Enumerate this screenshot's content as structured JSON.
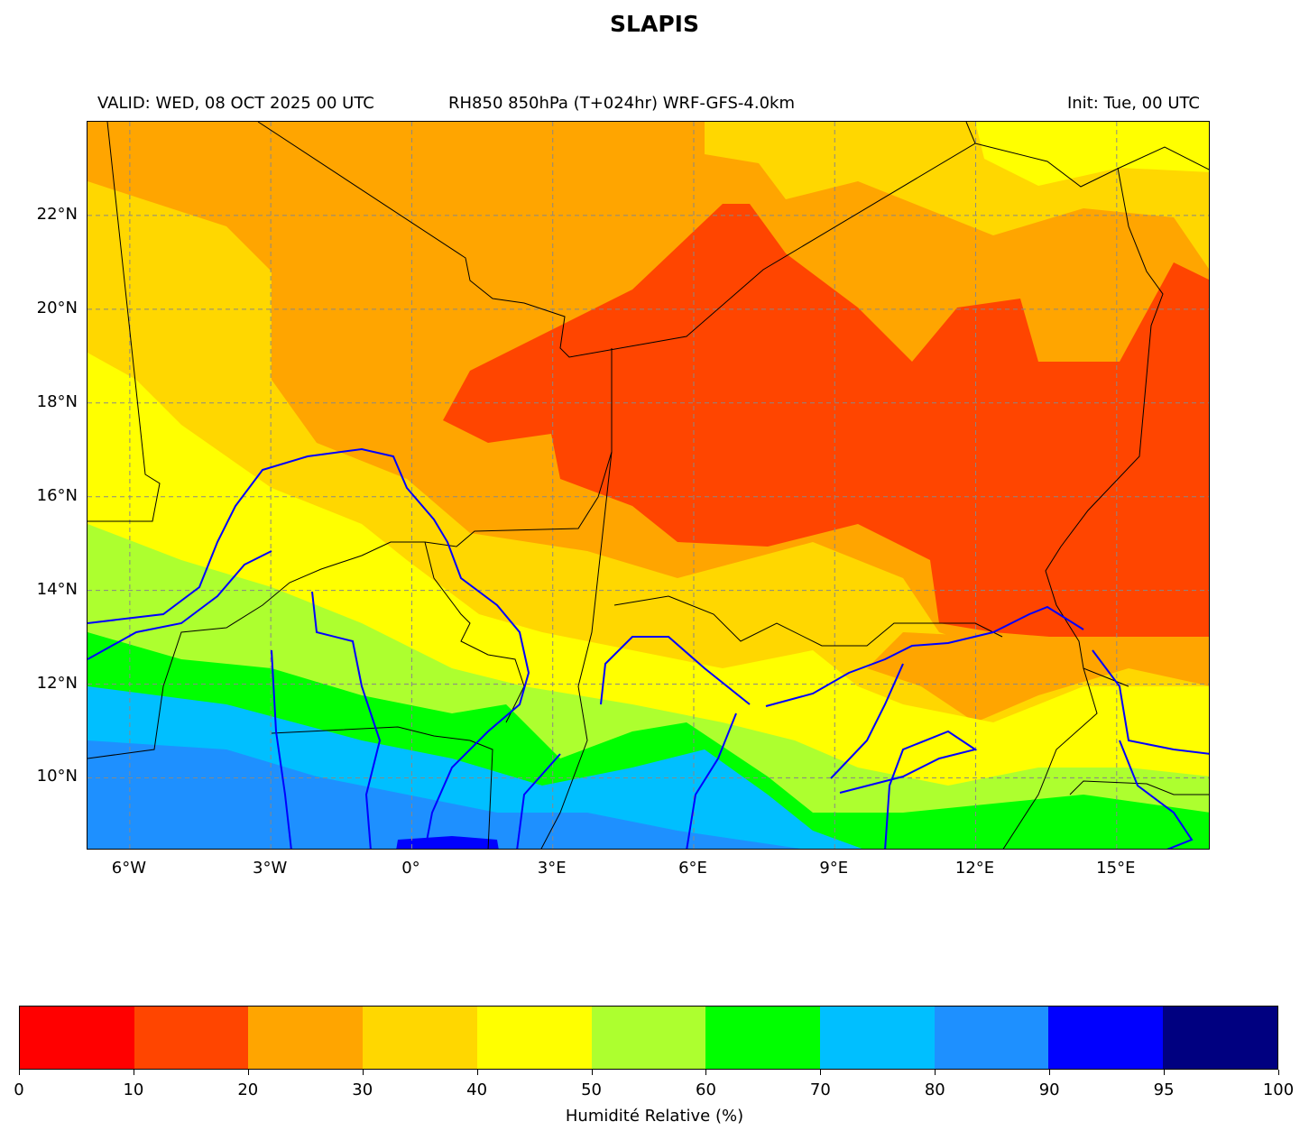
{
  "title": "SLAPIS",
  "subtitle_left": "VALID: WED, 08 OCT 2025 00 UTC",
  "subtitle_center": "RH850 850hPa (T+024hr) WRF-GFS-4.0km",
  "subtitle_right": "Init: Tue, 00 UTC",
  "map": {
    "extent": {
      "lon": [
        -6.9,
        17.0
      ],
      "lat": [
        8.45,
        24.0
      ]
    },
    "gridlines": true,
    "lon_ticks": [
      {
        "value": -6,
        "label": "6°W"
      },
      {
        "value": -3,
        "label": "3°W"
      },
      {
        "value": 0,
        "label": "0°"
      },
      {
        "value": 3,
        "label": "3°E"
      },
      {
        "value": 6,
        "label": "6°E"
      },
      {
        "value": 9,
        "label": "9°E"
      },
      {
        "value": 12,
        "label": "12°E"
      },
      {
        "value": 15,
        "label": "15°E"
      }
    ],
    "lat_ticks": [
      {
        "value": 10,
        "label": "10°N"
      },
      {
        "value": 12,
        "label": "12°N"
      },
      {
        "value": 14,
        "label": "14°N"
      },
      {
        "value": 16,
        "label": "16°N"
      },
      {
        "value": 18,
        "label": "18°N"
      },
      {
        "value": 20,
        "label": "20°N"
      },
      {
        "value": 22,
        "label": "22°N"
      }
    ],
    "border_color": "#000000",
    "river_color": "#0000ff"
  },
  "colorbar": {
    "label": "Humidité Relative (%)",
    "bounds": [
      "0",
      "10",
      "20",
      "30",
      "40",
      "50",
      "60",
      "70",
      "80",
      "90",
      "95",
      "100"
    ],
    "colors": [
      "#ff0000",
      "#ff4500",
      "#ffa500",
      "#ffd700",
      "#ffff00",
      "#adff2f",
      "#00ff00",
      "#00bfff",
      "#1e90ff",
      "#0000ff",
      "#000080"
    ]
  }
}
